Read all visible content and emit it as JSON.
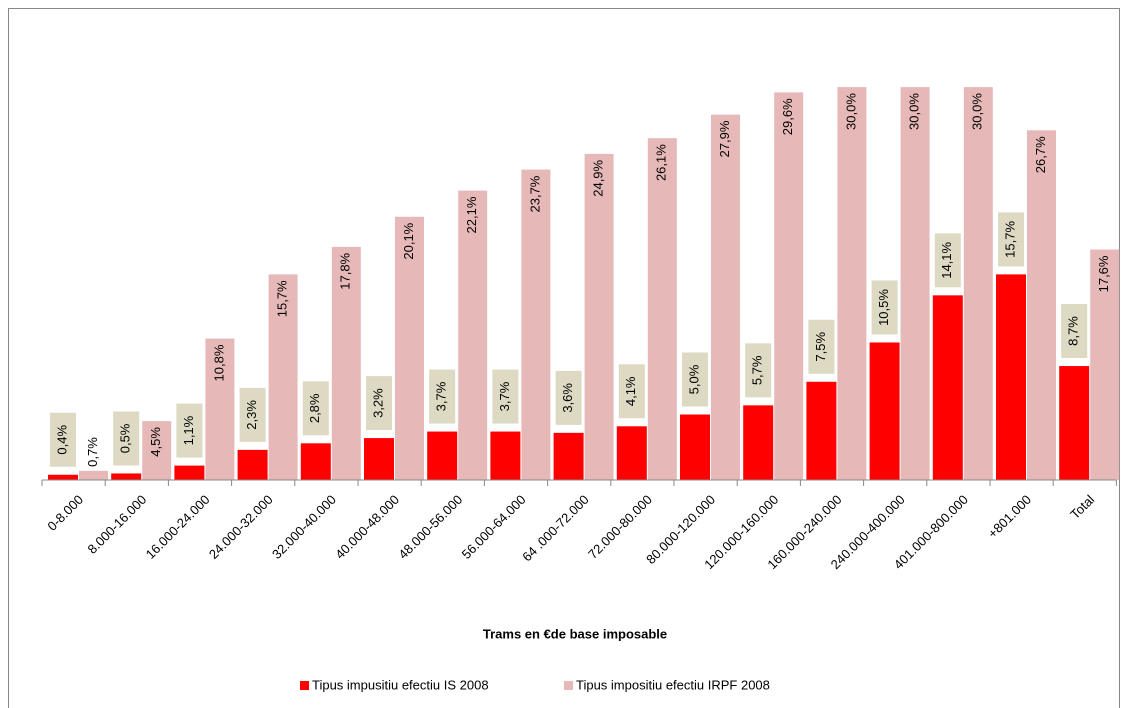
{
  "chart_data": {
    "type": "bar",
    "x_label": "Trams en €de base imposable",
    "categories": [
      "0-8.000",
      "8.000-16.000",
      "16.000-24.000",
      "24.000-32.000",
      "32.000-40.000",
      "40.000-48.000",
      "48.000-56.000",
      "56.000-64.000",
      "64 .000-72.000",
      "72.000-80.000",
      "80.000-120.000",
      "120.000-160.000",
      "160.000-240.000",
      "240.000-400.000",
      "401.000-800.000",
      "+801.000",
      "Total"
    ],
    "series": [
      {
        "name": "Tipus impusitiu efectiu IS 2008",
        "color": "#ff0000",
        "values": [
          0.4,
          0.5,
          1.1,
          2.3,
          2.8,
          3.2,
          3.7,
          3.7,
          3.6,
          4.1,
          5.0,
          5.7,
          7.5,
          10.5,
          14.1,
          15.7,
          8.7
        ],
        "value_labels": [
          "0,4%",
          "0,5%",
          "1,1%",
          "2,3%",
          "2,8%",
          "3,2%",
          "3,7%",
          "3,7%",
          "3,6%",
          "4,1%",
          "5,0%",
          "5,7%",
          "7,5%",
          "10,5%",
          "14,1%",
          "15,7%",
          "8,7%"
        ]
      },
      {
        "name": "Tipus impositiu efectiu IRPF 2008",
        "color": "#e6b9b8",
        "values": [
          0.7,
          4.5,
          10.8,
          15.7,
          17.8,
          20.1,
          22.1,
          23.7,
          24.9,
          26.1,
          27.9,
          29.6,
          30.0,
          30.0,
          30.0,
          26.7,
          17.6
        ],
        "value_labels": [
          "0,7%",
          "4,5%",
          "10,8%",
          "15,7%",
          "17,8%",
          "20,1%",
          "22,1%",
          "23,7%",
          "24,9%",
          "26,1%",
          "27,9%",
          "29,6%",
          "30,0%",
          "30,0%",
          "30,0%",
          "26,7%",
          "17,6%"
        ]
      }
    ],
    "ylim": [
      0,
      31
    ],
    "legend": "bottom"
  }
}
